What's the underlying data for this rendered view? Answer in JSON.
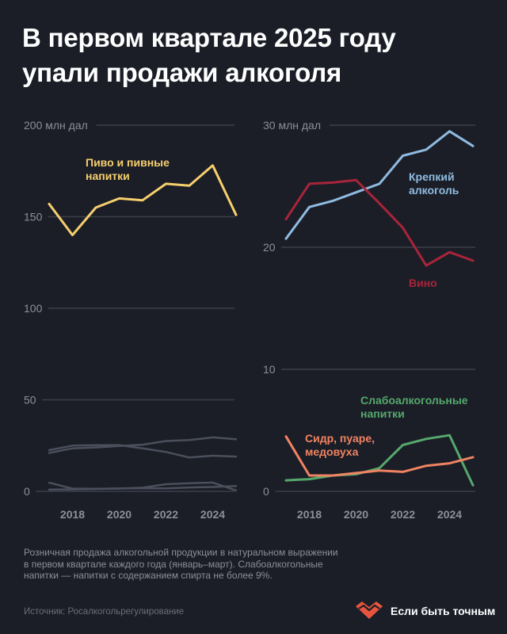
{
  "title": {
    "line1": "В первом квартале 2025 году",
    "line2": "упали продажи алкоголя"
  },
  "colors": {
    "background": "#1b1e27",
    "grid": "#3c3f4a",
    "tick_text": "#8c8f99",
    "beer": "#f6cf6d",
    "strong": "#8fbbe0",
    "wine": "#a8243a",
    "low_alcohol": "#56a86c",
    "cider": "#f08362",
    "faded_series": "#4b4f5b",
    "brand": "#e8553f"
  },
  "chart_data": [
    {
      "type": "line",
      "x": [
        2017,
        2018,
        2019,
        2020,
        2021,
        2022,
        2023,
        2024,
        2025
      ],
      "x_ticks": [
        "2018",
        "2020",
        "2022",
        "2024"
      ],
      "xlim": [
        2017,
        2025
      ],
      "ylim": [
        0,
        200
      ],
      "y_ticks": [
        "0",
        "50",
        "100",
        "150",
        "200 млн дал"
      ],
      "y_tick_values": [
        0,
        50,
        100,
        150,
        200
      ],
      "grid": true,
      "series": [
        {
          "key": "beer",
          "label_lines": [
            "Пиво и пивные",
            "напитки"
          ],
          "values": [
            157,
            140,
            155,
            160,
            159,
            168,
            167,
            178,
            151
          ],
          "highlight": true
        },
        {
          "key": "strong",
          "values": [
            21,
            23.5,
            24,
            24.8,
            25.5,
            27.5,
            28,
            29.5,
            28.5
          ],
          "highlight": false
        },
        {
          "key": "wine",
          "values": [
            22.5,
            25,
            25.2,
            25.3,
            23.5,
            21.5,
            18.5,
            19.5,
            19
          ],
          "highlight": false
        },
        {
          "key": "low_alcohol",
          "values": [
            1,
            1.1,
            1.3,
            1.5,
            2,
            3.9,
            4.4,
            4.8,
            0.5
          ],
          "highlight": false
        },
        {
          "key": "cider",
          "values": [
            4.7,
            1.5,
            1.4,
            1.6,
            1.7,
            1.6,
            2.1,
            2.4,
            2.9
          ],
          "highlight": false
        }
      ]
    },
    {
      "type": "line",
      "x": [
        2017,
        2018,
        2019,
        2020,
        2021,
        2022,
        2023,
        2024,
        2025
      ],
      "x_ticks": [
        "2018",
        "2020",
        "2022",
        "2024"
      ],
      "xlim": [
        2017,
        2025
      ],
      "ylim": [
        0,
        30
      ],
      "y_ticks": [
        "0",
        "10",
        "20",
        "30 млн дал"
      ],
      "y_tick_values": [
        0,
        10,
        20,
        30
      ],
      "grid": true,
      "series": [
        {
          "key": "strong",
          "label_lines": [
            "Крепкий",
            "алкоголь"
          ],
          "values": [
            20.7,
            23.3,
            23.8,
            24.5,
            25.2,
            27.5,
            28.0,
            29.5,
            28.3
          ]
        },
        {
          "key": "wine",
          "label_lines": [
            "Вино"
          ],
          "values": [
            22.3,
            25.2,
            25.3,
            25.5,
            23.6,
            21.6,
            18.5,
            19.6,
            18.9
          ]
        },
        {
          "key": "low_alcohol",
          "label_lines": [
            "Слабоалкогольные",
            "напитки"
          ],
          "values": [
            0.9,
            1.0,
            1.3,
            1.4,
            1.9,
            3.8,
            4.3,
            4.6,
            0.5
          ]
        },
        {
          "key": "cider",
          "label_lines": [
            "Сидр, пуаре,",
            "медовуха"
          ],
          "values": [
            4.5,
            1.3,
            1.3,
            1.5,
            1.7,
            1.6,
            2.1,
            2.3,
            2.8
          ]
        }
      ]
    }
  ],
  "note": "Розничная продажа алкогольной продукции в натуральном выражении в первом квартале каждого года (январь–март). Слабоалкогольные напитки — напитки с содержанием спирта не более 9%.",
  "source": "Источник: Росалкогольрегулирование",
  "brand": {
    "name": "Если быть точным",
    "icon": "heart-zigzag-icon"
  }
}
